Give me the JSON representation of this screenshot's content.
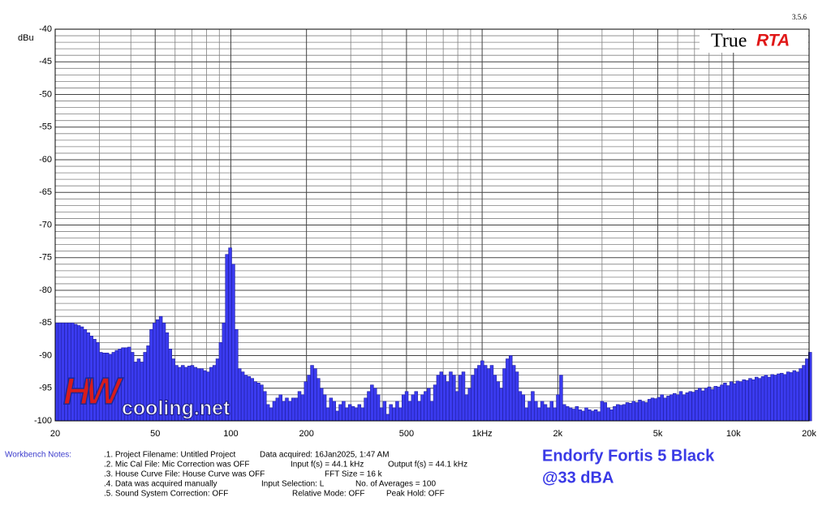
{
  "chart_data": {
    "type": "bar",
    "y_label": "dBu",
    "version": "3.5.6",
    "logo": {
      "left": "True",
      "right": "RTA"
    },
    "watermark": {
      "logo": "HW",
      "text": "cooling.net"
    },
    "xlim": [
      20,
      20000
    ],
    "ylim": [
      -100,
      -40
    ],
    "log_x": true,
    "bands_per_octave": 24,
    "xticks": [
      20,
      50,
      100,
      200,
      500,
      {
        "value": 1000,
        "label": "1kHz"
      },
      {
        "value": 2000,
        "label": "2k"
      },
      {
        "value": 5000,
        "label": "5k"
      },
      {
        "value": 10000,
        "label": "10k"
      },
      {
        "value": 20000,
        "label": "20k"
      }
    ],
    "xminor": [
      30,
      40,
      60,
      70,
      80,
      90,
      300,
      400,
      600,
      700,
      800,
      900,
      3000,
      4000,
      6000,
      7000,
      8000,
      9000
    ],
    "yticks": [
      -40,
      -45,
      -50,
      -55,
      -60,
      -65,
      -70,
      -75,
      -80,
      -85,
      -90,
      -95,
      -100
    ],
    "yminor": [
      -41,
      -42,
      -43,
      -44,
      -46,
      -47,
      -48,
      -49,
      -51,
      -52,
      -53,
      -54,
      -56,
      -57,
      -58,
      -59,
      -61,
      -62,
      -63,
      -64,
      -66,
      -67,
      -68,
      -69,
      -71,
      -72,
      -73,
      -74,
      -76,
      -77,
      -78,
      -79,
      -81,
      -82,
      -83,
      -84,
      -86,
      -87,
      -88,
      -89,
      -91,
      -92,
      -93,
      -94,
      -96,
      -97,
      -98,
      -99
    ],
    "grid": true,
    "color": "#3b3bf0",
    "values": [
      -85,
      -85,
      -85,
      -85,
      -85,
      -85,
      -85.2,
      -85.4,
      -85.6,
      -86,
      -86.5,
      -87,
      -87.5,
      -88,
      -89.5,
      -89.6,
      -89.6,
      -89.8,
      -89.5,
      -89.2,
      -89,
      -88.8,
      -88.8,
      -88.7,
      -89.5,
      -91,
      -90.5,
      -91,
      -89.5,
      -88.5,
      -86,
      -85,
      -84.5,
      -84,
      -85,
      -86.5,
      -89,
      -90.5,
      -91.5,
      -91.8,
      -91.5,
      -91.8,
      -91.6,
      -91.5,
      -91.8,
      -92,
      -92,
      -92.3,
      -92.5,
      -91.8,
      -91.5,
      -90.5,
      -88,
      -85,
      -74.5,
      -73.5,
      -76,
      -86,
      -92,
      -92.5,
      -93,
      -93.2,
      -93.5,
      -94,
      -94.2,
      -94.5,
      -95.5,
      -97.5,
      -98,
      -97,
      -96.5,
      -96,
      -97,
      -96.5,
      -97,
      -96.5,
      -96.5,
      -95.5,
      -96,
      -94,
      -93,
      -91.5,
      -92,
      -93.5,
      -95,
      -96,
      -98,
      -96.5,
      -97,
      -98.5,
      -97.5,
      -97,
      -98,
      -97.5,
      -97.8,
      -98,
      -97.5,
      -98,
      -96.5,
      -95.5,
      -94.5,
      -95,
      -96,
      -98,
      -97,
      -99,
      -97.5,
      -98,
      -97,
      -98,
      -96,
      -95.5,
      -97,
      -96,
      -95.5,
      -97,
      -96,
      -95.5,
      -95,
      -97,
      -94.5,
      -93,
      -92.5,
      -93,
      -94,
      -92.5,
      -93,
      -95.5,
      -93,
      -92.5,
      -96,
      -95,
      -93,
      -92,
      -91.5,
      -90.8,
      -91.5,
      -92,
      -91.5,
      -93,
      -94,
      -95,
      -92,
      -90.5,
      -90,
      -91.5,
      -92.5,
      -95.5,
      -96,
      -98,
      -97,
      -95.5,
      -97,
      -98,
      -97,
      -97.5,
      -98,
      -97,
      -98,
      -96,
      -93,
      -97.5,
      -97.8,
      -98,
      -98.2,
      -97.8,
      -98.3,
      -98.5,
      -98,
      -98.3,
      -98.5,
      -98.3,
      -98.6,
      -97,
      -97.2,
      -98,
      -98.3,
      -97.8,
      -97.5,
      -97.6,
      -97.5,
      -97.2,
      -97.3,
      -97,
      -97.2,
      -96.8,
      -97,
      -97.2,
      -96.7,
      -96.5,
      -96.6,
      -96.4,
      -96,
      -96.5,
      -96.2,
      -96,
      -95.8,
      -96,
      -95.5,
      -96,
      -95.7,
      -95.5,
      -95.6,
      -95.3,
      -95,
      -95.4,
      -95,
      -94.8,
      -95.2,
      -94.7,
      -94.8,
      -94.5,
      -94.2,
      -94.6,
      -94,
      -94.3,
      -93.9,
      -94,
      -93.7,
      -93.8,
      -93.5,
      -93.7,
      -93.3,
      -93.5,
      -93.2,
      -93,
      -93.3,
      -92.9,
      -93,
      -92.8,
      -92.7,
      -92.9,
      -92.5,
      -92.6,
      -92.3,
      -92.5,
      -92,
      -91.5,
      -90.5,
      -89.5
    ]
  },
  "notes": {
    "label": "Workbench Notes:",
    "rows": [
      [
        ".1. Project Filename: Untitled Project",
        "Data acquired: 16Jan2025, 1:47 AM"
      ],
      [
        ".2. Mic Cal File: Mic Correction was OFF",
        "Input f(s) = 44.1 kHz",
        "Output f(s) = 44.1 kHz"
      ],
      [
        ".3. House Curve File: House Curve was OFF",
        "FFT Size = 16 k"
      ],
      [
        ".4. Data was acquired manually",
        "Input Selection: L",
        "No. of Averages = 100"
      ],
      [
        ".5. Sound System Correction: OFF",
        "Relative Mode: OFF",
        "Peak Hold: OFF"
      ]
    ]
  },
  "caption": [
    "Endorfy Fortis 5 Black",
    "@33 dBA"
  ]
}
